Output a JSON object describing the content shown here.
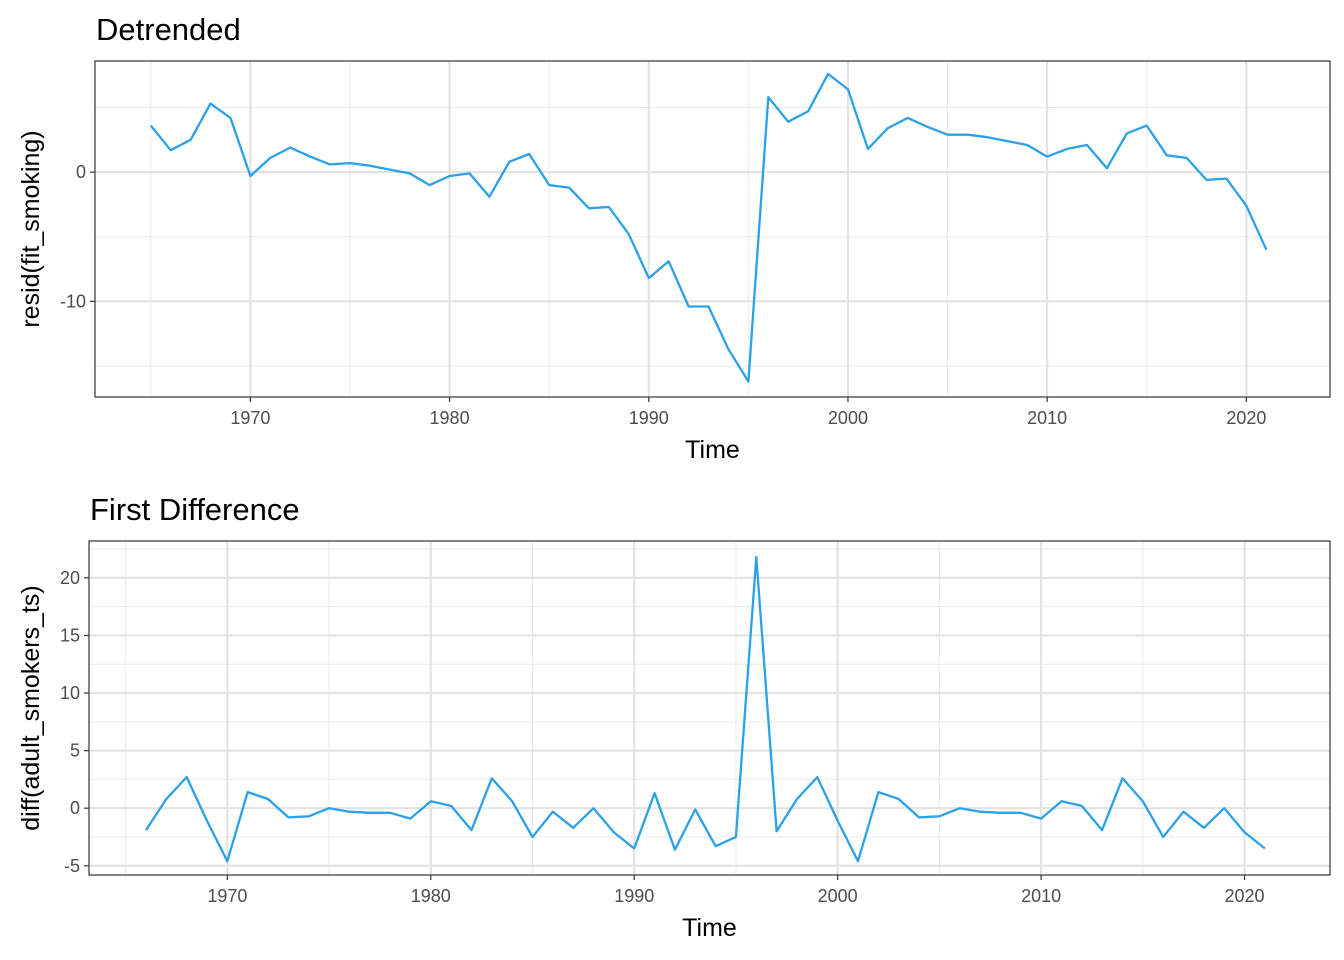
{
  "chart_data": [
    {
      "type": "line",
      "title": "Detrended",
      "xlabel": "Time",
      "ylabel": "resid(fit_smoking)",
      "xlim": [
        1962.2,
        2024.2
      ],
      "ylim": [
        -17.4,
        8.6
      ],
      "xticks": [
        1970,
        1980,
        1990,
        2000,
        2010,
        2020
      ],
      "yticks": [
        -10,
        0
      ],
      "ytick_labels": [
        "-10",
        "0"
      ],
      "grid": true,
      "color": "#2aa1e8",
      "x": [
        1965,
        1966,
        1967,
        1968,
        1969,
        1970,
        1971,
        1972,
        1973,
        1974,
        1975,
        1976,
        1977,
        1978,
        1979,
        1980,
        1981,
        1982,
        1983,
        1984,
        1985,
        1986,
        1987,
        1988,
        1989,
        1990,
        1991,
        1992,
        1993,
        1994,
        1995,
        1996,
        1997,
        1998,
        1999,
        2000,
        2001,
        2002,
        2003,
        2004,
        2005,
        2006,
        2007,
        2008,
        2009,
        2010,
        2011,
        2012,
        2013,
        2014,
        2015,
        2016,
        2017,
        2018,
        2019,
        2020,
        2021
      ],
      "y": [
        3.6,
        1.7,
        2.5,
        5.3,
        4.2,
        -0.3,
        1.1,
        1.9,
        1.2,
        0.6,
        0.7,
        0.5,
        0.2,
        -0.1,
        -1.0,
        -0.3,
        -0.1,
        -1.9,
        0.8,
        1.4,
        -1.0,
        -1.2,
        -2.8,
        -2.7,
        -4.8,
        -8.2,
        -6.9,
        -10.4,
        -10.4,
        -13.7,
        -16.2,
        5.8,
        3.9,
        4.7,
        7.6,
        6.4,
        1.8,
        3.4,
        4.2,
        3.5,
        2.9,
        2.9,
        2.7,
        2.4,
        2.1,
        1.2,
        1.8,
        2.1,
        0.3,
        3.0,
        3.6,
        1.3,
        1.1,
        -0.6,
        -0.5,
        -2.6,
        -6.0
      ]
    },
    {
      "type": "line",
      "title": "First Difference",
      "xlabel": "Time",
      "ylabel": "diff(adult_smokers_ts)",
      "xlim": [
        1963.2,
        2024.2
      ],
      "ylim": [
        -5.8,
        23.2
      ],
      "xticks": [
        1970,
        1980,
        1990,
        2000,
        2010,
        2020
      ],
      "yticks": [
        -5,
        0,
        5,
        10,
        15,
        20
      ],
      "ytick_labels": [
        "-5",
        "0",
        "5",
        "10",
        "15",
        "20"
      ],
      "grid": true,
      "color": "#2aa1e8",
      "x": [
        1966,
        1967,
        1968,
        1969,
        1970,
        1971,
        1972,
        1973,
        1974,
        1975,
        1976,
        1977,
        1978,
        1979,
        1980,
        1981,
        1982,
        1983,
        1984,
        1985,
        1986,
        1987,
        1988,
        1989,
        1990,
        1991,
        1992,
        1993,
        1994,
        1995,
        1996,
        1997,
        1998,
        1999,
        2000,
        2001,
        2002,
        2003,
        2004,
        2005,
        2006,
        2007,
        2008,
        2009,
        2010,
        2011,
        2012,
        2013,
        2014,
        2015,
        2016,
        2017,
        2018,
        2019,
        2020,
        2021
      ],
      "y": [
        -1.9,
        0.8,
        2.7,
        -1.1,
        -4.6,
        1.4,
        0.8,
        -0.8,
        -0.7,
        0.0,
        -0.3,
        -0.4,
        -0.4,
        -0.9,
        0.6,
        0.2,
        -1.9,
        2.6,
        0.6,
        -2.5,
        -0.3,
        -1.7,
        0.0,
        -2.1,
        -3.5,
        1.3,
        -3.6,
        -0.1,
        -3.3,
        -2.5,
        21.8,
        -2.0,
        0.8,
        2.7,
        -1.1,
        -4.6,
        1.4,
        0.8,
        -0.8,
        -0.7,
        0.0,
        -0.3,
        -0.4,
        -0.4,
        -0.9,
        0.6,
        0.2,
        -1.9,
        2.6,
        0.6,
        -2.5,
        -0.3,
        -1.7,
        0.0,
        -2.1,
        -3.5
      ]
    }
  ]
}
